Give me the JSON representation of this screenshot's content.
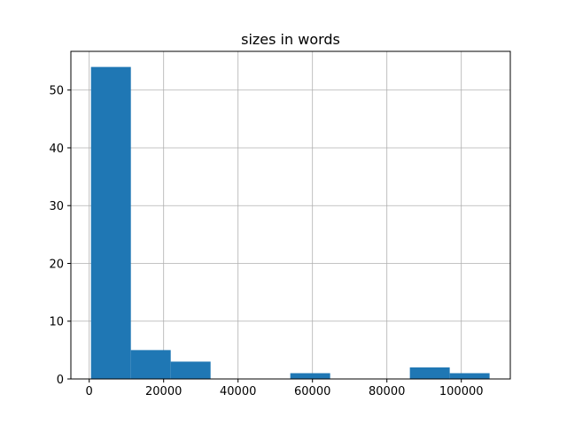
{
  "chart_data": {
    "type": "bar",
    "subtype": "histogram",
    "title": "sizes in words",
    "xlabel": "",
    "ylabel": "",
    "bin_edges": [
      480,
      11192,
      21904,
      32616,
      43328,
      54040,
      64752,
      75464,
      86176,
      96888,
      107600
    ],
    "values": [
      54,
      5,
      3,
      0,
      0,
      1,
      0,
      0,
      2,
      1
    ],
    "xlim": [
      -5000,
      113000
    ],
    "ylim": [
      0,
      56.7
    ],
    "xticks": [
      0,
      20000,
      40000,
      60000,
      80000,
      100000
    ],
    "xtick_labels": [
      "0",
      "20000",
      "40000",
      "60000",
      "80000",
      "100000"
    ],
    "yticks": [
      0,
      10,
      20,
      30,
      40,
      50
    ],
    "ytick_labels": [
      "0",
      "10",
      "20",
      "30",
      "40",
      "50"
    ],
    "grid": true,
    "legend": "none",
    "colors": {
      "bar": "#1f77b4",
      "grid": "#b0b0b0"
    }
  }
}
